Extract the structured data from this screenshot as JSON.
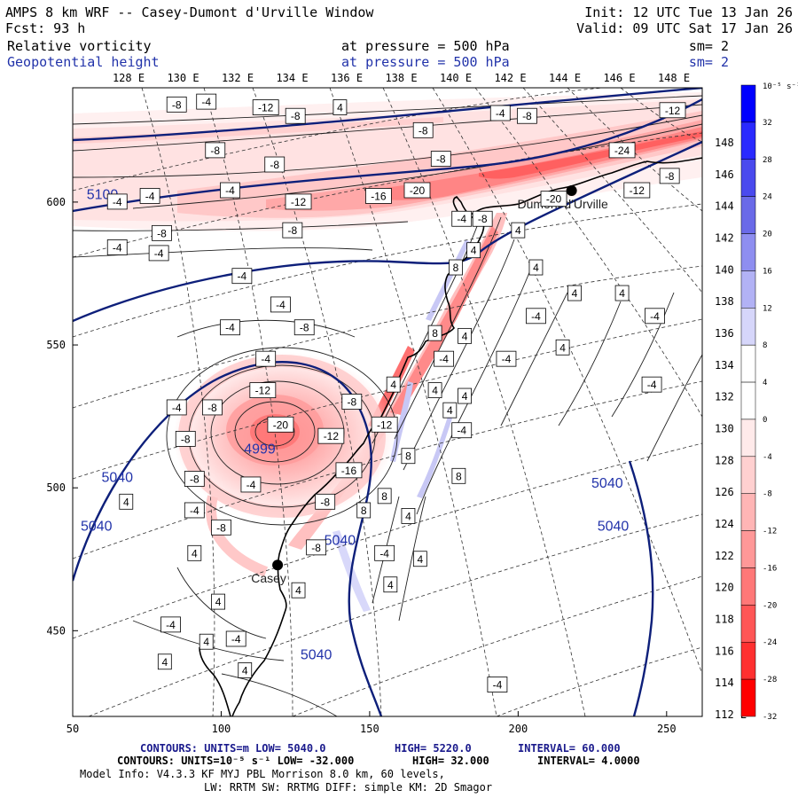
{
  "header": {
    "left1": "AMPS 8 km WRF -- Casey-Dumont d'Urville Window",
    "left2": "Fcst:    93 h",
    "right1": "Init: 12 UTC Tue 13 Jan 26",
    "right2": "Valid: 09 UTC Sat 17 Jan 26",
    "field1": {
      "name": "Relative vorticity",
      "level": "at pressure =  500 hPa",
      "sm": "sm= 2"
    },
    "field2": {
      "name": "Geopotential height",
      "level": "at pressure =  500 hPa",
      "sm": "sm= 2"
    }
  },
  "colors": {
    "line_blue": "#0d1f7a",
    "label_blue": "#2233aa",
    "coast": "#000000"
  },
  "chart_data": {
    "type": "contour-map",
    "title": "AMPS 8 km WRF -- Casey-Dumont d'Urville Window",
    "x_axis": {
      "range": [
        50,
        262
      ],
      "ticks": [
        "50",
        "100",
        "150",
        "200",
        "250"
      ],
      "tick_values": [
        50,
        100,
        150,
        200,
        250
      ]
    },
    "y_axis": {
      "range": [
        420,
        640
      ],
      "ticks": [
        "450",
        "500",
        "550",
        "600"
      ],
      "tick_values": [
        450,
        500,
        550,
        600
      ]
    },
    "top_lon_labels": [
      "128 E",
      "130 E",
      "132 E",
      "134 E",
      "136 E",
      "138 E",
      "140 E",
      "142 E",
      "144 E",
      "146 E",
      "148 E"
    ],
    "right_lon_labels": [
      "148 E",
      "146 E",
      "144 E",
      "142 E",
      "140 E",
      "138 E",
      "136 E",
      "134 E",
      "132 E",
      "130 E",
      "128 E",
      "126 E",
      "124 E",
      "122 E",
      "120 E",
      "118 E",
      "116 E",
      "114 E",
      "112 E"
    ],
    "colorbar": {
      "unit_label": "10⁻⁵ s⁻¹",
      "levels": [
        "32",
        "28",
        "24",
        "20",
        "16",
        "12",
        "8",
        "4",
        "0",
        "-4",
        "-8",
        "-12",
        "-16",
        "-20",
        "-24",
        "-28",
        "-32"
      ],
      "colors": [
        "#0000ff",
        "#2a2aff",
        "#4a4aee",
        "#6a6ae8",
        "#8e8ef0",
        "#b2b2f5",
        "#d6d6fa",
        "#ffffff",
        "#ffffff",
        "#ffeaea",
        "#ffd0d0",
        "#ffb5b5",
        "#ff9898",
        "#ff7878",
        "#ff5656",
        "#ff3030",
        "#ff0000"
      ]
    },
    "height_labels": [
      {
        "text": "5100",
        "x": 60,
        "y": 601
      },
      {
        "text": "5040",
        "x": 65,
        "y": 502
      },
      {
        "text": "5040",
        "x": 58,
        "y": 485
      },
      {
        "text": "5040",
        "x": 140,
        "y": 480
      },
      {
        "text": "5040",
        "x": 132,
        "y": 440
      },
      {
        "text": "5040",
        "x": 230,
        "y": 500
      },
      {
        "text": "5040",
        "x": 232,
        "y": 485
      },
      {
        "text": "4999",
        "x": 113,
        "y": 512
      }
    ],
    "vorticity_labels": [
      {
        "text": "-8",
        "x": 85,
        "y": 634
      },
      {
        "text": "-4",
        "x": 95,
        "y": 635
      },
      {
        "text": "-12",
        "x": 115,
        "y": 633
      },
      {
        "text": "-8",
        "x": 125,
        "y": 630
      },
      {
        "text": "4",
        "x": 140,
        "y": 633
      },
      {
        "text": "-8",
        "x": 168,
        "y": 625
      },
      {
        "text": "-4",
        "x": 194,
        "y": 631
      },
      {
        "text": "-8",
        "x": 203,
        "y": 630
      },
      {
        "text": "-12",
        "x": 252,
        "y": 632
      },
      {
        "text": "-8",
        "x": 98,
        "y": 618
      },
      {
        "text": "-8",
        "x": 118,
        "y": 613
      },
      {
        "text": "-8",
        "x": 174,
        "y": 615
      },
      {
        "text": "-4",
        "x": 65,
        "y": 600
      },
      {
        "text": "-4",
        "x": 76,
        "y": 602
      },
      {
        "text": "-4",
        "x": 103,
        "y": 604
      },
      {
        "text": "-12",
        "x": 126,
        "y": 600
      },
      {
        "text": "-16",
        "x": 153,
        "y": 602
      },
      {
        "text": "-20",
        "x": 166,
        "y": 604
      },
      {
        "text": "-24",
        "x": 235,
        "y": 618
      },
      {
        "text": "-20",
        "x": 212,
        "y": 601
      },
      {
        "text": "-12",
        "x": 240,
        "y": 604
      },
      {
        "text": "-8",
        "x": 251,
        "y": 609
      },
      {
        "text": "-4",
        "x": 181,
        "y": 594
      },
      {
        "text": "-8",
        "x": 188,
        "y": 594
      },
      {
        "text": "-8",
        "x": 80,
        "y": 589
      },
      {
        "text": "-4",
        "x": 65,
        "y": 584
      },
      {
        "text": "-4",
        "x": 79,
        "y": 582
      },
      {
        "text": "-8",
        "x": 124,
        "y": 590
      },
      {
        "text": "4",
        "x": 200,
        "y": 590
      },
      {
        "text": "4",
        "x": 185,
        "y": 583
      },
      {
        "text": "8",
        "x": 179,
        "y": 577
      },
      {
        "text": "4",
        "x": 206,
        "y": 577
      },
      {
        "text": "-4",
        "x": 107,
        "y": 574
      },
      {
        "text": "4",
        "x": 219,
        "y": 568
      },
      {
        "text": "4",
        "x": 235,
        "y": 568
      },
      {
        "text": "-4",
        "x": 120,
        "y": 564
      },
      {
        "text": "-4",
        "x": 206,
        "y": 560
      },
      {
        "text": "-4",
        "x": 246,
        "y": 560
      },
      {
        "text": "-4",
        "x": 103,
        "y": 556
      },
      {
        "text": "-8",
        "x": 128,
        "y": 556
      },
      {
        "text": "8",
        "x": 172,
        "y": 554
      },
      {
        "text": "4",
        "x": 182,
        "y": 553
      },
      {
        "text": "4",
        "x": 215,
        "y": 549
      },
      {
        "text": "-4",
        "x": 196,
        "y": 545
      },
      {
        "text": "-4",
        "x": 175,
        "y": 545
      },
      {
        "text": "-4",
        "x": 115,
        "y": 545
      },
      {
        "text": "4",
        "x": 158,
        "y": 536
      },
      {
        "text": "4",
        "x": 172,
        "y": 534
      },
      {
        "text": "4",
        "x": 182,
        "y": 532
      },
      {
        "text": "-4",
        "x": 245,
        "y": 536
      },
      {
        "text": "-12",
        "x": 114,
        "y": 534
      },
      {
        "text": "-8",
        "x": 97,
        "y": 528
      },
      {
        "text": "-4",
        "x": 85,
        "y": 528
      },
      {
        "text": "-8",
        "x": 144,
        "y": 530
      },
      {
        "text": "4",
        "x": 177,
        "y": 527
      },
      {
        "text": "-20",
        "x": 120,
        "y": 522
      },
      {
        "text": "-12",
        "x": 155,
        "y": 522
      },
      {
        "text": "-4",
        "x": 181,
        "y": 520
      },
      {
        "text": "-8",
        "x": 88,
        "y": 517
      },
      {
        "text": "-12",
        "x": 137,
        "y": 518
      },
      {
        "text": "8",
        "x": 163,
        "y": 511
      },
      {
        "text": "-16",
        "x": 143,
        "y": 506
      },
      {
        "text": "8",
        "x": 180,
        "y": 504
      },
      {
        "text": "-8",
        "x": 91,
        "y": 503
      },
      {
        "text": "-4",
        "x": 110,
        "y": 501
      },
      {
        "text": "8",
        "x": 155,
        "y": 497
      },
      {
        "text": "4",
        "x": 68,
        "y": 495
      },
      {
        "text": "-4",
        "x": 91,
        "y": 492
      },
      {
        "text": "-8",
        "x": 135,
        "y": 495
      },
      {
        "text": "8",
        "x": 148,
        "y": 492
      },
      {
        "text": "4",
        "x": 163,
        "y": 490
      },
      {
        "text": "-8",
        "x": 100,
        "y": 486
      },
      {
        "text": "-8",
        "x": 132,
        "y": 479
      },
      {
        "text": "4",
        "x": 91,
        "y": 477
      },
      {
        "text": "-4",
        "x": 155,
        "y": 477
      },
      {
        "text": "4",
        "x": 167,
        "y": 475
      },
      {
        "text": "4",
        "x": 157,
        "y": 466
      },
      {
        "text": "4",
        "x": 126,
        "y": 464
      },
      {
        "text": "4",
        "x": 99,
        "y": 460
      },
      {
        "text": "-4",
        "x": 83,
        "y": 452
      },
      {
        "text": "4",
        "x": 95,
        "y": 446
      },
      {
        "text": "-4",
        "x": 105,
        "y": 447
      },
      {
        "text": "4",
        "x": 81,
        "y": 439
      },
      {
        "text": "4",
        "x": 108,
        "y": 436
      },
      {
        "text": "-4",
        "x": 193,
        "y": 431
      }
    ],
    "stations": [
      {
        "name": "Casey",
        "x": 119,
        "y": 473
      },
      {
        "name": "Dumont d'Urville",
        "x": 218,
        "y": 604
      }
    ]
  },
  "footer": {
    "line1": {
      "a": "CONTOURS:  UNITS=m  LOW=  5040.0",
      "b": "HIGH=  5220.0",
      "c": "INTERVAL=   60.000"
    },
    "line2": {
      "a": "CONTOURS:  UNITS=10⁻⁵ s⁻¹  LOW= -32.000",
      "b": "HIGH=  32.000",
      "c": "INTERVAL=   4.0000"
    },
    "line3": "Model Info: V4.3.3   KF     MYJ PBL  Morrison          8.0 km,  60 levels,",
    "line4": "LW: RRTM SW: RRTMG   DIFF: simple KM: 2D Smagor"
  }
}
